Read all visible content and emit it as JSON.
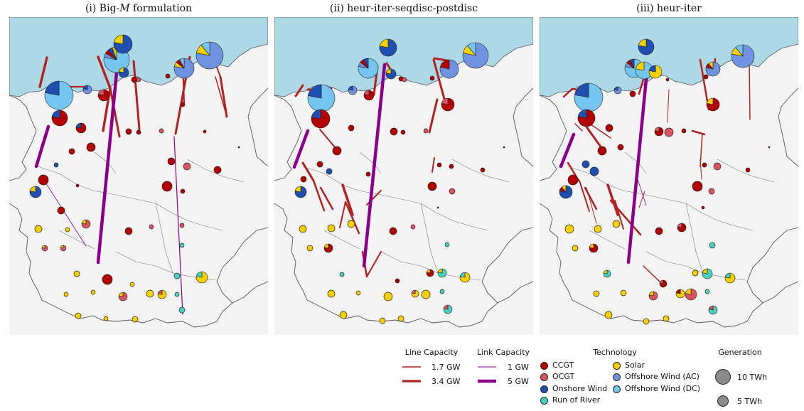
{
  "panels": [
    {
      "title": "(i) Big-M formulation",
      "title_main": "(i) Big-",
      "title_italic": "M",
      "title_rest": " formulation"
    },
    {
      "title": "(ii) heur-iter-seqdisc-postdisc"
    },
    {
      "title": "(iii) heur-iter"
    }
  ],
  "colors": {
    "sea": "#add8e6",
    "land": "#f3f3f3",
    "border": "#555555",
    "line": "#b22222",
    "link": "#8b008b",
    "CCGT": "#b30000",
    "OCGT": "#d9545e",
    "Onshore Wind": "#1f4fb0",
    "Run of River": "#48d1c0",
    "Solar": "#f5d000",
    "Offshore Wind (AC)": "#6f93e0",
    "Offshore Wind (DC)": "#74c6f0"
  },
  "legend": {
    "line_capacity": {
      "title": "Line Capacity",
      "items": [
        {
          "label": "1.7 GW"
        },
        {
          "label": "3.4 GW"
        }
      ]
    },
    "link_capacity": {
      "title": "Link Capacity",
      "items": [
        {
          "label": "1 GW"
        },
        {
          "label": "5 GW"
        }
      ]
    },
    "technology": {
      "title": "Technology",
      "items": [
        {
          "label": "CCGT",
          "color": "#b30000"
        },
        {
          "label": "OCGT",
          "color": "#d9545e"
        },
        {
          "label": "Onshore Wind",
          "color": "#1f4fb0"
        },
        {
          "label": "Run of River",
          "color": "#48d1c0"
        },
        {
          "label": "Solar",
          "color": "#f5d000"
        },
        {
          "label": "Offshore Wind (AC)",
          "color": "#6f93e0"
        },
        {
          "label": "Offshore Wind (DC)",
          "color": "#74c6f0"
        }
      ]
    },
    "generation": {
      "title": "Generation",
      "items": [
        {
          "label": "10 TWh"
        },
        {
          "label": "5 TWh"
        }
      ]
    }
  }
}
